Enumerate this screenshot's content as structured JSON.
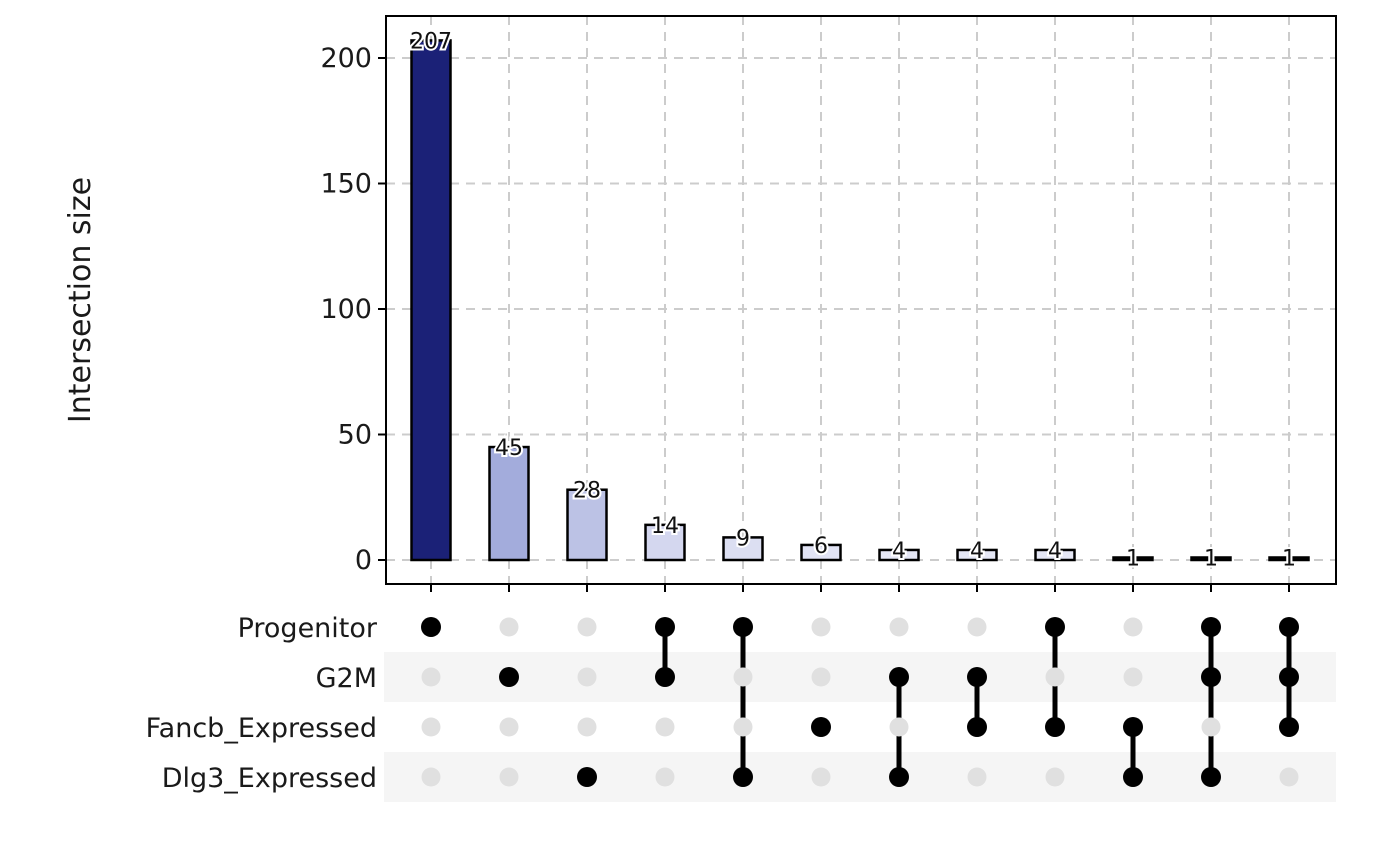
{
  "chart_data": {
    "type": "bar",
    "subtype": "upset",
    "ylabel": "Intersection size",
    "ylim": [
      0,
      215
    ],
    "yticks": [
      0,
      50,
      100,
      150,
      200
    ],
    "grid": true,
    "sets": [
      "Progenitor",
      "G2M",
      "Fancb_Expressed",
      "Dlg3_Expressed"
    ],
    "intersections": [
      {
        "value": 207,
        "label": "207",
        "members": [
          "Progenitor"
        ],
        "fill": "#1b2177"
      },
      {
        "value": 45,
        "label": "45",
        "members": [
          "G2M"
        ],
        "fill": "#a3acdc"
      },
      {
        "value": 28,
        "label": "28",
        "members": [
          "Dlg3_Expressed"
        ],
        "fill": "#bcc2e5"
      },
      {
        "value": 14,
        "label": "14",
        "members": [
          "Progenitor",
          "G2M"
        ],
        "fill": "#d4d7ef"
      },
      {
        "value": 9,
        "label": "9",
        "members": [
          "Progenitor",
          "Dlg3_Expressed"
        ],
        "fill": "#dcdff2"
      },
      {
        "value": 6,
        "label": "6",
        "members": [
          "Fancb_Expressed"
        ],
        "fill": "#e1e3f4"
      },
      {
        "value": 4,
        "label": "4",
        "members": [
          "G2M",
          "Dlg3_Expressed"
        ],
        "fill": "#e5e7f5"
      },
      {
        "value": 4,
        "label": "4",
        "members": [
          "G2M",
          "Fancb_Expressed"
        ],
        "fill": "#e5e7f5"
      },
      {
        "value": 4,
        "label": "4",
        "members": [
          "Progenitor",
          "Fancb_Expressed"
        ],
        "fill": "#e5e7f5"
      },
      {
        "value": 1,
        "label": "1",
        "members": [
          "Fancb_Expressed",
          "Dlg3_Expressed"
        ],
        "fill": "#eaebf7"
      },
      {
        "value": 1,
        "label": "1",
        "members": [
          "Progenitor",
          "G2M",
          "Dlg3_Expressed"
        ],
        "fill": "#eaebf7"
      },
      {
        "value": 1,
        "label": "1",
        "members": [
          "Progenitor",
          "G2M",
          "Fancb_Expressed"
        ],
        "fill": "#eaebf7"
      }
    ],
    "colors": {
      "active_dot": "#000000",
      "inactive_dot": "#e0e0e0",
      "stripe": "#f5f5f5",
      "grid": "#cccccc",
      "bar_stroke": "#000000"
    }
  }
}
